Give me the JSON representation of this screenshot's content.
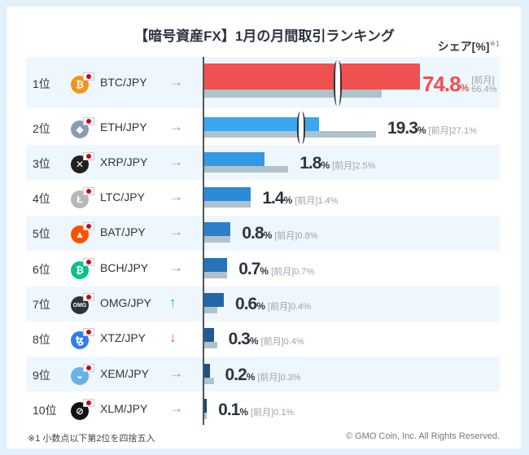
{
  "chart_data": {
    "type": "bar",
    "title": "【暗号資産FX】1月の月間取引ランキング",
    "ylabel": "シェア[%]",
    "ylabel_note": "※1",
    "prev_label": "[前月]",
    "unit": "%",
    "axis_break": true,
    "rows": [
      {
        "rank": "1位",
        "pair": "BTC/JPY",
        "value": 74.8,
        "prev": 66.4,
        "trend": "flat",
        "color": "#ef5050",
        "coin": "bitcoin-icon",
        "coin_color": "#f7931a",
        "glyph": "₿"
      },
      {
        "rank": "2位",
        "pair": "ETH/JPY",
        "value": 19.3,
        "prev": 27.1,
        "trend": "flat",
        "color": "#3aa6f0",
        "coin": "ethereum-icon",
        "coin_color": "#8c9bb5",
        "glyph": "◆"
      },
      {
        "rank": "3位",
        "pair": "XRP/JPY",
        "value": 1.8,
        "prev": 2.5,
        "trend": "flat",
        "color": "#3399e6",
        "coin": "xrp-icon",
        "coin_color": "#222",
        "glyph": "✕"
      },
      {
        "rank": "4位",
        "pair": "LTC/JPY",
        "value": 1.4,
        "prev": 1.4,
        "trend": "flat",
        "color": "#2d8ad6",
        "coin": "litecoin-icon",
        "coin_color": "#b8b8b8",
        "glyph": "Ł"
      },
      {
        "rank": "5位",
        "pair": "BAT/JPY",
        "value": 0.8,
        "prev": 0.8,
        "trend": "flat",
        "color": "#2a7fc8",
        "coin": "bat-icon",
        "coin_color": "#ff5000",
        "glyph": "▲"
      },
      {
        "rank": "6位",
        "pair": "BCH/JPY",
        "value": 0.7,
        "prev": 0.7,
        "trend": "flat",
        "color": "#2673ba",
        "coin": "bitcoin-cash-icon",
        "coin_color": "#0ac18e",
        "glyph": "₿"
      },
      {
        "rank": "7位",
        "pair": "OMG/JPY",
        "value": 0.6,
        "prev": 0.4,
        "trend": "up",
        "color": "#2268a8",
        "coin": "omg-icon",
        "coin_color": "#333",
        "glyph": "OMG"
      },
      {
        "rank": "8位",
        "pair": "XTZ/JPY",
        "value": 0.3,
        "prev": 0.4,
        "trend": "down",
        "color": "#1d5c98",
        "coin": "tezos-icon",
        "coin_color": "#2c7df7",
        "glyph": "ꜩ"
      },
      {
        "rank": "9位",
        "pair": "XEM/JPY",
        "value": 0.2,
        "prev": 0.3,
        "trend": "flat",
        "color": "#19528a",
        "coin": "nem-icon",
        "coin_color": "#67b2e8",
        "glyph": "◒"
      },
      {
        "rank": "10位",
        "pair": "XLM/JPY",
        "value": 0.1,
        "prev": 0.1,
        "trend": "flat",
        "color": "#154779",
        "coin": "stellar-icon",
        "coin_color": "#111",
        "glyph": "⊘"
      }
    ]
  },
  "trend_glyphs": {
    "flat": "→",
    "up": "↑",
    "down": "↓"
  },
  "trend_colors": {
    "flat": "#9a9a9a",
    "up": "#1fb65a",
    "down": "#e06060"
  },
  "prev_color": "#b0c2cc",
  "footnote": "※1 小数点以下第2位を四捨五入",
  "copyright": "© GMO Coin, Inc. All Rights Reserved."
}
